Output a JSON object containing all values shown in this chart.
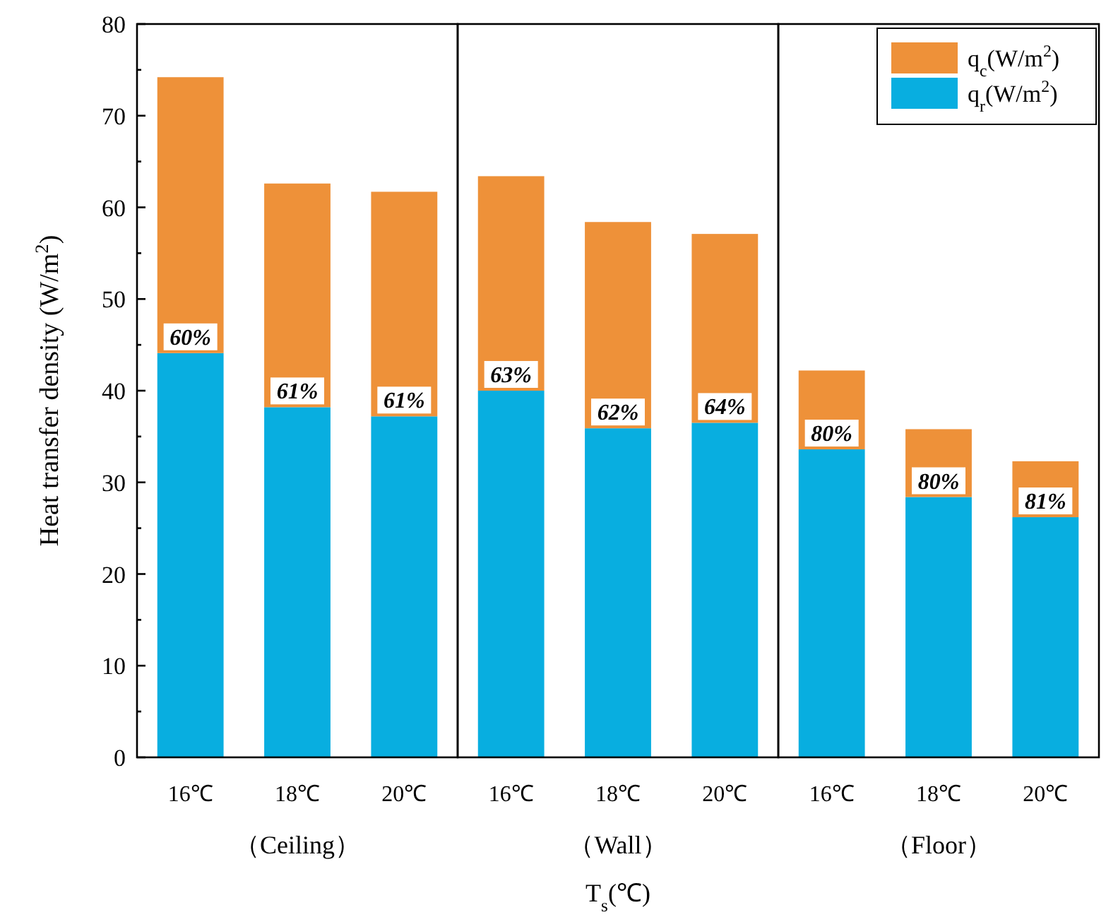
{
  "chart_data": [
    {
      "type": "bar",
      "stacked": true,
      "categories": [
        "16℃",
        "18℃",
        "20℃"
      ],
      "xlabel": "（Ceiling）",
      "ylabel": "Heat transfer density (W/m$^{2}$)",
      "ylim": [
        0,
        80
      ],
      "yticks": [
        0,
        10,
        20,
        30,
        40,
        50,
        60,
        70,
        80
      ],
      "series": [
        {
          "color": "#08aee0",
          "values": [
            44.1,
            38.2,
            37.2
          ]
        },
        {
          "color": "#ee9139",
          "values": [
            30.1,
            24.4,
            24.5
          ]
        }
      ],
      "annotations": [
        {
          "text": "60%",
          "x": "16℃",
          "y": 44.1
        },
        {
          "text": "61%",
          "x": "18℃",
          "y": 38.2
        },
        {
          "text": "61%",
          "x": "20℃",
          "y": 37.2
        }
      ]
    },
    {
      "type": "bar",
      "stacked": true,
      "categories": [
        "16℃",
        "18℃",
        "20℃"
      ],
      "xlabel": "（Wall）",
      "ylim": [
        0,
        80
      ],
      "tick_labels": "x",
      "series": [
        {
          "color": "#08aee0",
          "values": [
            40.0,
            35.9,
            36.5
          ]
        },
        {
          "color": "#ee9139",
          "values": [
            23.4,
            22.5,
            20.6
          ]
        }
      ],
      "annotations": [
        {
          "text": "63%",
          "x": "16℃",
          "y": 40.0
        },
        {
          "text": "62%",
          "x": "18℃",
          "y": 35.9
        },
        {
          "text": "64%",
          "x": "20℃",
          "y": 36.5
        },
        "T$_{s}$(℃)"
      ]
    },
    {
      "type": "bar",
      "stacked": true,
      "categories": [
        "16℃",
        "18℃",
        "20℃"
      ],
      "xlabel": "（Floor）",
      "ylim": [
        0,
        80
      ],
      "tick_labels": "x",
      "legend": "top right",
      "series": [
        {
          "name": "q$_{r}$(W/m$^{2}$)",
          "color": "#08aee0",
          "values": [
            33.6,
            28.4,
            26.2
          ]
        },
        {
          "name": "q$_{c}$(W/m$^{2}$)",
          "color": "#ee9139",
          "values": [
            8.6,
            7.4,
            6.1
          ]
        }
      ],
      "annotations": [
        {
          "text": "80%",
          "x": "16℃",
          "y": 33.6
        },
        {
          "text": "80%",
          "x": "18℃",
          "y": 28.4
        },
        {
          "text": "81%",
          "x": "20℃",
          "y": 26.2
        }
      ]
    }
  ]
}
